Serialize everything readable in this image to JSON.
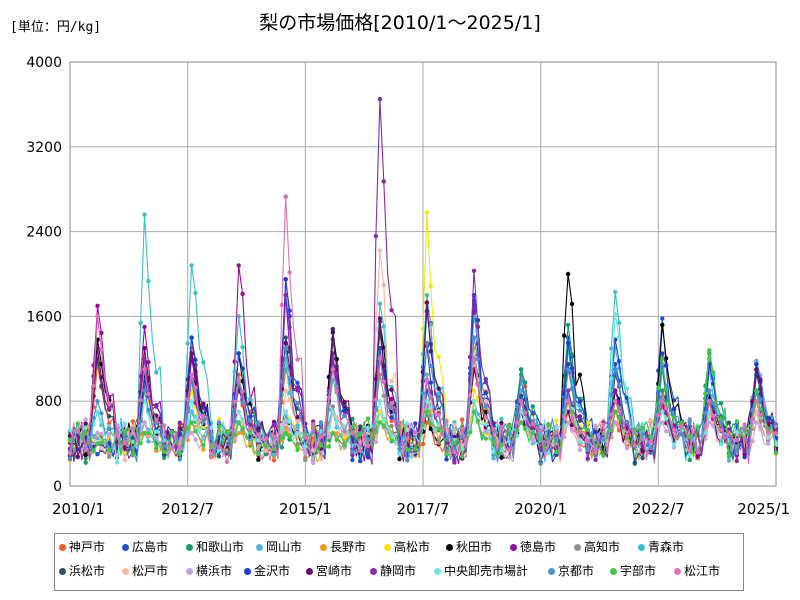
{
  "chart_data": {
    "type": "line",
    "title": "梨の市場価格[2010/1～2025/1]",
    "unit_label": "[単位：円/kg]",
    "ylim": [
      0,
      4000
    ],
    "y_ticks": [
      0,
      800,
      1600,
      2400,
      3200,
      4000
    ],
    "y_tick_labels": [
      "0",
      "800",
      "1600",
      "2400",
      "3200",
      "4000"
    ],
    "x_range": [
      "2010/1",
      "2025/1"
    ],
    "x_ticks": [
      "2010/1",
      "2012/7",
      "2015/1",
      "2017/7",
      "2020/1",
      "2022/7",
      "2025/1"
    ],
    "grid": true,
    "legend_position": "bottom",
    "series": [
      {
        "name": "神戸市",
        "color": "#ff5a1f",
        "peaks": [
          1150,
          1050,
          1300,
          1050,
          1100,
          1200,
          1180,
          600,
          1750,
          1050,
          700,
          600,
          750,
          700,
          1180
        ]
      },
      {
        "name": "広島市",
        "color": "#1a4fd6",
        "peaks": [
          300,
          950,
          1400,
          950,
          1950,
          1200,
          1300,
          900,
          1800,
          1100,
          1400,
          1150,
          1580,
          1200,
          1150
        ]
      },
      {
        "name": "和歌山市",
        "color": "#10a070",
        "peaks": [
          500,
          600,
          700,
          600,
          500,
          500,
          700,
          1000,
          700,
          1100,
          1520,
          900,
          900,
          1250,
          900
        ]
      },
      {
        "name": "岡山市",
        "color": "#5aaee8",
        "peaks": [
          450,
          500,
          700,
          600,
          650,
          700,
          700,
          1050,
          800,
          700,
          850,
          1300,
          1150,
          1100,
          1180
        ]
      },
      {
        "name": "長野市",
        "color": "#f29a1a",
        "peaks": [
          400,
          500,
          600,
          500,
          550,
          500,
          600,
          800,
          1300,
          800,
          700,
          700,
          800,
          800,
          800
        ]
      },
      {
        "name": "高松市",
        "color": "#f5e60a",
        "peaks": [
          500,
          1000,
          900,
          700,
          700,
          700,
          700,
          2580,
          900,
          800,
          800,
          800,
          700,
          900,
          800
        ]
      },
      {
        "name": "秋田市",
        "color": "#000000",
        "peaks": [
          1380,
          1050,
          1250,
          1250,
          700,
          1450,
          1550,
          700,
          1100,
          700,
          2000,
          900,
          1520,
          850,
          1100
        ]
      },
      {
        "name": "徳島市",
        "color": "#9a0aa0",
        "peaks": [
          1700,
          1500,
          1200,
          2080,
          1800,
          1250,
          1550,
          1730,
          1650,
          900,
          1300,
          900,
          800,
          800,
          1100
        ]
      },
      {
        "name": "高知市",
        "color": "#909090",
        "peaks": [
          400,
          600,
          1050,
          1250,
          700,
          750,
          1050,
          750,
          800,
          700,
          900,
          800,
          850,
          800,
          700
        ]
      },
      {
        "name": "青森市",
        "color": "#3cc0c8",
        "peaks": [
          700,
          2560,
          2080,
          1600,
          1200,
          1000,
          1720,
          1800,
          1600,
          900,
          1300,
          1830,
          1100,
          1200,
          1150
        ]
      },
      {
        "name": "浜松市",
        "color": "#2f4f6f",
        "peaks": [
          1200,
          1300,
          1050,
          950,
          1400,
          1380,
          1450,
          1650,
          1250,
          850,
          1150,
          1050,
          1120,
          900,
          1050
        ]
      },
      {
        "name": "松戸市",
        "color": "#f5b8a0",
        "peaks": [
          400,
          500,
          600,
          700,
          900,
          700,
          2220,
          1000,
          1250,
          700,
          700,
          700,
          700,
          650,
          700
        ]
      },
      {
        "name": "横浜市",
        "color": "#c8a0e0",
        "peaks": [
          500,
          600,
          500,
          600,
          600,
          500,
          600,
          700,
          700,
          600,
          600,
          600,
          600,
          600,
          600
        ]
      },
      {
        "name": "金沢市",
        "color": "#1f3fd0",
        "peaks": [
          400,
          1000,
          1400,
          1250,
          1950,
          1200,
          1200,
          1320,
          1800,
          1000,
          1350,
          1380,
          1250,
          1150,
          1150
        ]
      },
      {
        "name": "宮崎市",
        "color": "#6a0a6a",
        "peaks": [
          1300,
          1300,
          1250,
          900,
          1350,
          1480,
          1580,
          1730,
          1100,
          700,
          700,
          700,
          800,
          800,
          1100
        ]
      },
      {
        "name": "静岡市",
        "color": "#8a2aa8",
        "peaks": [
          1600,
          1200,
          1000,
          1000,
          1800,
          1200,
          3650,
          1000,
          2030,
          800,
          900,
          800,
          800,
          800,
          900
        ]
      },
      {
        "name": "中央卸売市場計",
        "color": "#6ae8e8",
        "peaks": [
          700,
          800,
          800,
          700,
          700,
          700,
          800,
          800,
          800,
          700,
          800,
          1620,
          700,
          700,
          800
        ]
      },
      {
        "name": "京都市",
        "color": "#4a90d0",
        "peaks": [
          800,
          900,
          1000,
          1000,
          1300,
          1100,
          1200,
          1350,
          1400,
          1000,
          1100,
          1100,
          1100,
          900,
          900
        ]
      },
      {
        "name": "宇部市",
        "color": "#40c840",
        "peaks": [
          400,
          500,
          600,
          600,
          500,
          500,
          600,
          700,
          700,
          600,
          800,
          700,
          1200,
          1280,
          900
        ]
      },
      {
        "name": "松江市",
        "color": "#e070b0",
        "peaks": [
          1600,
          1100,
          1050,
          1000,
          2730,
          1100,
          1200,
          1000,
          1200,
          800,
          800,
          800,
          800,
          800,
          800
        ]
      }
    ]
  }
}
